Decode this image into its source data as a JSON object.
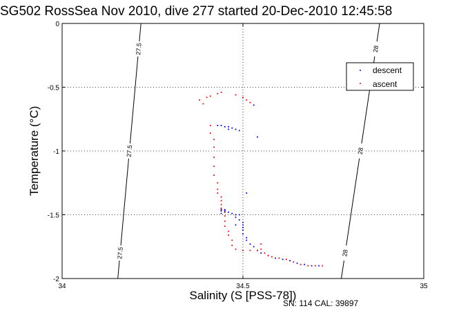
{
  "chart_data": {
    "type": "scatter",
    "title": "SG502 RossSea Nov 2010, dive 277 started 20-Dec-2010 12:45:58",
    "xlabel": "Salinity (S [PSS-78])",
    "ylabel": "Temperature (°C)",
    "xlim": [
      34,
      35
    ],
    "ylim": [
      -2,
      0
    ],
    "x_ticks": [
      34,
      34.5,
      35
    ],
    "x_tick_labels": [
      "34",
      "34.5",
      "35"
    ],
    "y_ticks": [
      0,
      -0.5,
      -1,
      -1.5,
      -2
    ],
    "y_tick_labels": [
      "0",
      "-0.5",
      "-1",
      "-1.5",
      "-2"
    ],
    "grid": true,
    "grid_style": "dotted",
    "legend_position": "top-right",
    "series": [
      {
        "name": "descent",
        "color": "#0000ff",
        "points": [
          [
            34.43,
            -0.8
          ],
          [
            34.44,
            -0.8
          ],
          [
            34.45,
            -0.81
          ],
          [
            34.46,
            -0.81
          ],
          [
            34.47,
            -0.82
          ],
          [
            34.48,
            -0.83
          ],
          [
            34.49,
            -0.84
          ],
          [
            34.46,
            -0.83
          ],
          [
            34.53,
            -0.64
          ],
          [
            34.54,
            -0.89
          ],
          [
            34.51,
            -1.33
          ],
          [
            34.48,
            -1.58
          ],
          [
            34.49,
            -1.5
          ],
          [
            34.44,
            -1.45
          ],
          [
            34.44,
            -1.46
          ],
          [
            34.45,
            -1.46
          ],
          [
            34.45,
            -1.47
          ],
          [
            34.44,
            -1.47
          ],
          [
            34.45,
            -1.48
          ],
          [
            34.46,
            -1.48
          ],
          [
            34.44,
            -1.49
          ],
          [
            34.47,
            -1.49
          ],
          [
            34.48,
            -1.5
          ],
          [
            34.48,
            -1.52
          ],
          [
            34.49,
            -1.54
          ],
          [
            34.5,
            -1.56
          ],
          [
            34.5,
            -1.58
          ],
          [
            34.5,
            -1.6
          ],
          [
            34.5,
            -1.62
          ],
          [
            34.5,
            -1.65
          ],
          [
            34.51,
            -1.68
          ],
          [
            34.51,
            -1.7
          ],
          [
            34.52,
            -1.73
          ],
          [
            34.53,
            -1.75
          ],
          [
            34.54,
            -1.78
          ],
          [
            34.55,
            -1.8
          ],
          [
            34.57,
            -1.82
          ],
          [
            34.59,
            -1.84
          ],
          [
            34.61,
            -1.85
          ],
          [
            34.63,
            -1.86
          ],
          [
            34.65,
            -1.88
          ],
          [
            34.67,
            -1.89
          ],
          [
            34.69,
            -1.9
          ],
          [
            34.71,
            -1.9
          ]
        ]
      },
      {
        "name": "ascent",
        "color": "#ff0000",
        "points": [
          [
            34.38,
            -0.6
          ],
          [
            34.4,
            -0.58
          ],
          [
            34.41,
            -0.57
          ],
          [
            34.43,
            -0.55
          ],
          [
            34.44,
            -0.54
          ],
          [
            34.39,
            -0.63
          ],
          [
            34.48,
            -0.56
          ],
          [
            34.5,
            -0.58
          ],
          [
            34.51,
            -0.6
          ],
          [
            34.52,
            -0.62
          ],
          [
            34.41,
            -0.8
          ],
          [
            34.41,
            -0.86
          ],
          [
            34.42,
            -0.91
          ],
          [
            34.42,
            -0.97
          ],
          [
            34.42,
            -1.05
          ],
          [
            34.42,
            -1.12
          ],
          [
            34.42,
            -1.19
          ],
          [
            34.43,
            -1.25
          ],
          [
            34.43,
            -1.3
          ],
          [
            34.43,
            -1.33
          ],
          [
            34.44,
            -1.36
          ],
          [
            34.44,
            -1.39
          ],
          [
            34.44,
            -1.42
          ],
          [
            34.44,
            -1.45
          ],
          [
            34.45,
            -1.48
          ],
          [
            34.45,
            -1.51
          ],
          [
            34.45,
            -1.55
          ],
          [
            34.45,
            -1.59
          ],
          [
            34.46,
            -1.63
          ],
          [
            34.46,
            -1.66
          ],
          [
            34.47,
            -1.7
          ],
          [
            34.47,
            -1.74
          ],
          [
            34.48,
            -1.77
          ],
          [
            34.5,
            -1.78
          ],
          [
            34.52,
            -1.78
          ],
          [
            34.54,
            -1.78
          ],
          [
            34.55,
            -1.77
          ],
          [
            34.55,
            -1.73
          ],
          [
            34.56,
            -1.8
          ],
          [
            34.57,
            -1.82
          ],
          [
            34.58,
            -1.83
          ],
          [
            34.6,
            -1.84
          ],
          [
            34.62,
            -1.85
          ],
          [
            34.64,
            -1.87
          ],
          [
            34.66,
            -1.89
          ],
          [
            34.68,
            -1.9
          ],
          [
            34.7,
            -1.9
          ],
          [
            34.72,
            -1.9
          ]
        ]
      }
    ],
    "density_contours": [
      {
        "label": "27.5",
        "x": [
          34.154,
          34.218
        ],
        "y": [
          -2,
          0
        ]
      },
      {
        "label": "28",
        "x": [
          34.772,
          34.878
        ],
        "y": [
          -2,
          0
        ]
      }
    ]
  },
  "footer": {
    "serial": "SN: 114  CAL: 39897"
  }
}
